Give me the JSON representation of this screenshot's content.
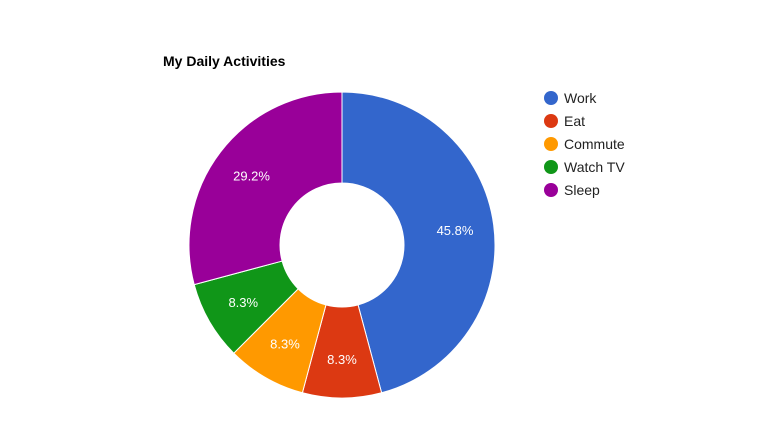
{
  "chart_data": {
    "type": "pie",
    "title": "My Daily Activities",
    "donut": true,
    "legend_position": "right",
    "categories": [
      "Work",
      "Eat",
      "Commute",
      "Watch TV",
      "Sleep"
    ],
    "values": [
      11,
      2,
      2,
      2,
      7
    ],
    "labels": [
      "45.8%",
      "8.3%",
      "8.3%",
      "8.3%",
      "29.2%"
    ],
    "colors": [
      "#3366cc",
      "#dc3912",
      "#ff9900",
      "#109618",
      "#990099"
    ]
  }
}
